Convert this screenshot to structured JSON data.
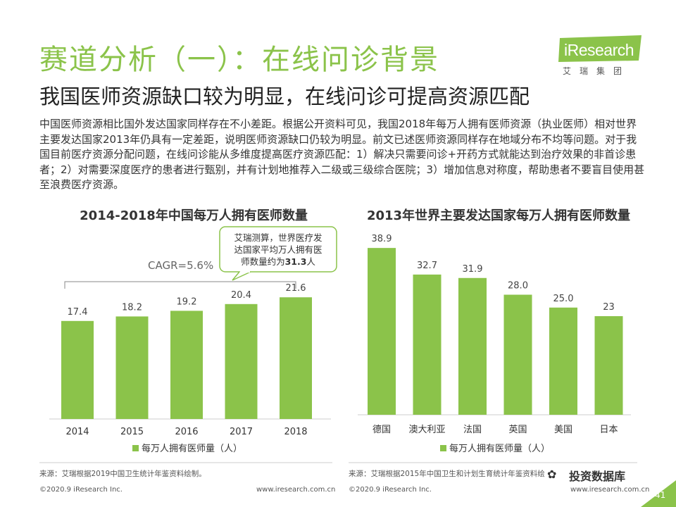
{
  "header": {
    "title": "赛道分析（一）：在线问诊背景",
    "subtitle": "我国医师资源缺口较为明显，在线问诊可提高资源匹配"
  },
  "logo": {
    "brand": "iResearch",
    "cn": "艾瑞集团"
  },
  "intro": "中国医师资源相比国外发达国家同样存在不小差距。根据公开资料可见，我国2018年每万人拥有医师资源（执业医师）相对世界主要发达国家2013年仍具有一定差距，说明医师资源缺口仍较为明显。前文已述医师资源同样存在地域分布不均等问题。对于我国目前医疗资源分配问题，在线问诊能从多维度提高医疗资源匹配：1）解决只需要问诊+开药方式就能达到治疗效果的非首诊患者；2）对需要深度医疗的患者进行甄别，并有计划地推荐入二级或三级综合医院；3）增加信息对称度，帮助患者不要盲目使用甚至浪费医疗资源。",
  "colors": {
    "accent": "#8bc34a",
    "bar": "#8bc34a",
    "callout_border": "#8bc34a"
  },
  "chart_data": [
    {
      "type": "bar",
      "title": "2014-2018年中国每万人拥有医师数量",
      "categories": [
        "2014",
        "2015",
        "2016",
        "2017",
        "2018"
      ],
      "series": [
        {
          "name": "每万人拥有医师量（人）",
          "values": [
            17.4,
            18.2,
            19.2,
            20.4,
            21.6
          ]
        }
      ],
      "value_labels": [
        "17.4",
        "18.2",
        "19.2",
        "20.4",
        "21.6"
      ],
      "ylim": [
        0,
        30
      ],
      "annotation_cagr": "CAGR=5.6%",
      "callout": {
        "line1": "艾瑞测算，世界医疗发",
        "line2": "达国家平均万人拥有医",
        "line3_pre": "师数量约为",
        "line3_bold": "31.3",
        "line3_post": "人"
      },
      "legend": "每万人拥有医师量（人）",
      "source": "来源：艾瑞根据2019中国卫生统计年鉴资料绘制。"
    },
    {
      "type": "bar",
      "title": "2013年世界主要发达国家每万人拥有医师数量",
      "categories": [
        "德国",
        "澳大利亚",
        "法国",
        "英国",
        "美国",
        "日本"
      ],
      "series": [
        {
          "name": "每万人拥有医师量（人）",
          "values": [
            38.9,
            32.7,
            31.9,
            28.0,
            25.0,
            23
          ]
        }
      ],
      "value_labels": [
        "38.9",
        "32.7",
        "31.9",
        "28.0",
        "25.0",
        "23"
      ],
      "ylim": [
        0,
        45
      ],
      "legend": "每万人拥有医师量（人）",
      "source": "来源：艾瑞根据2015年中国卫生和计划生育统计年鉴资料绘"
    }
  ],
  "footer": {
    "copyright_left": "©2020.9 iResearch Inc.",
    "url_left": "www.iresearch.com.cn",
    "copyright_right": "©2020.9 iResearch Inc.",
    "url_right": "www.iresearch.com.cn",
    "watermark": "投资数据库",
    "page_number": "41"
  }
}
